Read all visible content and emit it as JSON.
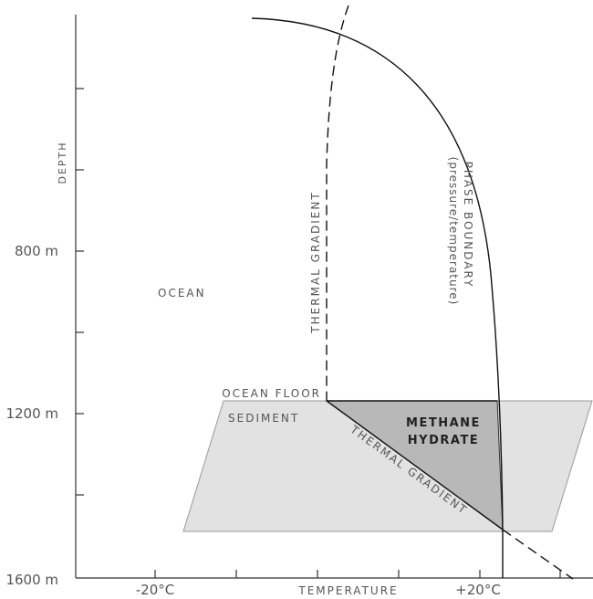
{
  "axes": {
    "y_title": "DEPTH",
    "x_title": "TEMPERATURE",
    "y_ticks": [
      "800 m",
      "1200 m",
      "1600 m"
    ],
    "x_ticks": [
      "-20°C",
      "+20°C"
    ]
  },
  "labels": {
    "ocean": "OCEAN",
    "ocean_floor": "OCEAN FLOOR",
    "sediment": "SEDIMENT",
    "methane_line1": "METHANE",
    "methane_line2": "HYDRATE",
    "thermal_gradient_vertical": "THERMAL GRADIENT",
    "thermal_gradient_diagonal": "THERMAL GRADIENT",
    "phase_boundary_line1": "PHASE BOUNDARY",
    "phase_boundary_line2": "(pressure/temperature)"
  },
  "colors": {
    "sediment_fill": "#e2e2e2",
    "hydrate_fill": "#b8b8b8",
    "line": "#111111",
    "text": "#555555"
  }
}
